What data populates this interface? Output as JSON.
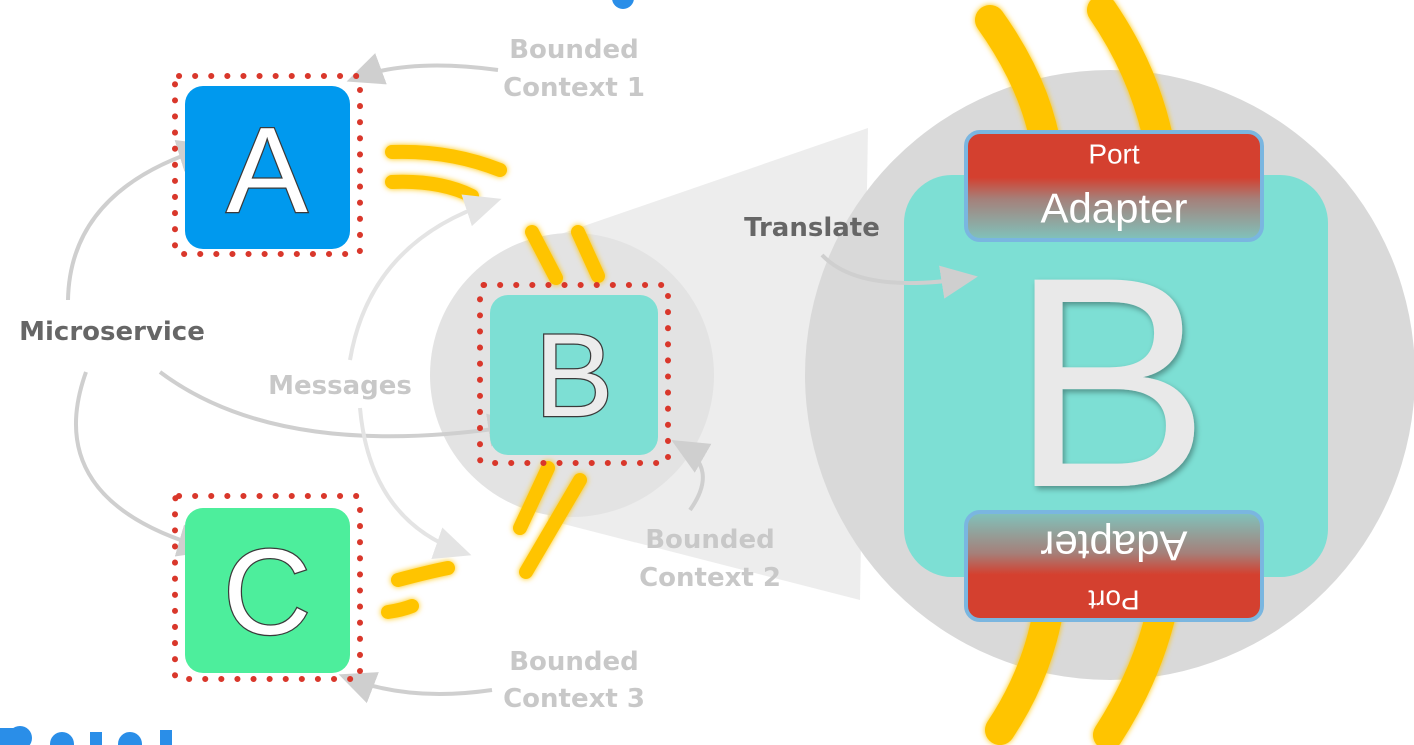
{
  "labels": {
    "microservice": "Microservice",
    "messages": "Messages",
    "translate": "Translate",
    "bounded_context_1": [
      "Bounded",
      "Context 1"
    ],
    "bounded_context_2": [
      "Bounded",
      "Context 2"
    ],
    "bounded_context_3": [
      "Bounded",
      "Context 3"
    ]
  },
  "services": {
    "a": {
      "letter": "A",
      "color": "#0099ee"
    },
    "b": {
      "letter": "B",
      "color": "#7ddfd4"
    },
    "c": {
      "letter": "C",
      "color": "#4dee9c"
    }
  },
  "zoom": {
    "letter": "B",
    "port_top": "Port",
    "adapter_top": "Adapter",
    "adapter_bottom": "Adapter",
    "port_bottom": "Port"
  },
  "colors": {
    "dots": "#d9372b",
    "pipe": "#ffc400",
    "port": "#d4402f",
    "adapter_border": "#7ab6e0",
    "arrow": "#d0d0d0",
    "title_blue": "#2a8ee8"
  }
}
